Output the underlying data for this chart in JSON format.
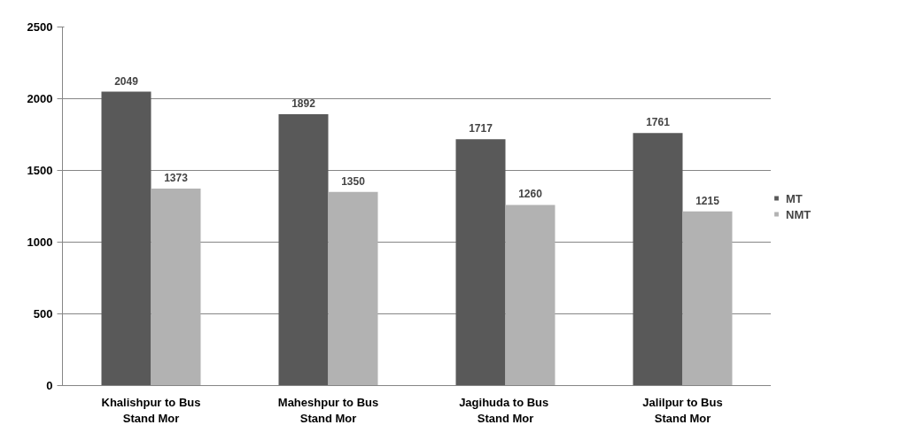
{
  "chart_data": {
    "type": "bar",
    "categories": [
      "Khalishpur to Bus Stand Mor",
      "Maheshpur to Bus Stand Mor",
      "Jagihuda  to Bus Stand Mor",
      "Jalilpur to Bus Stand Mor"
    ],
    "series": [
      {
        "name": "MT",
        "color": "#595959",
        "values": [
          2049,
          1892,
          1717,
          1761
        ]
      },
      {
        "name": "NMT",
        "color": "#b2b2b2",
        "values": [
          1373,
          1350,
          1260,
          1215
        ]
      }
    ],
    "ylim": [
      0,
      2500
    ],
    "yticks": [
      0,
      500,
      1000,
      1500,
      2000,
      2500
    ],
    "grid": "y",
    "legend": "right",
    "data_labels": true
  }
}
